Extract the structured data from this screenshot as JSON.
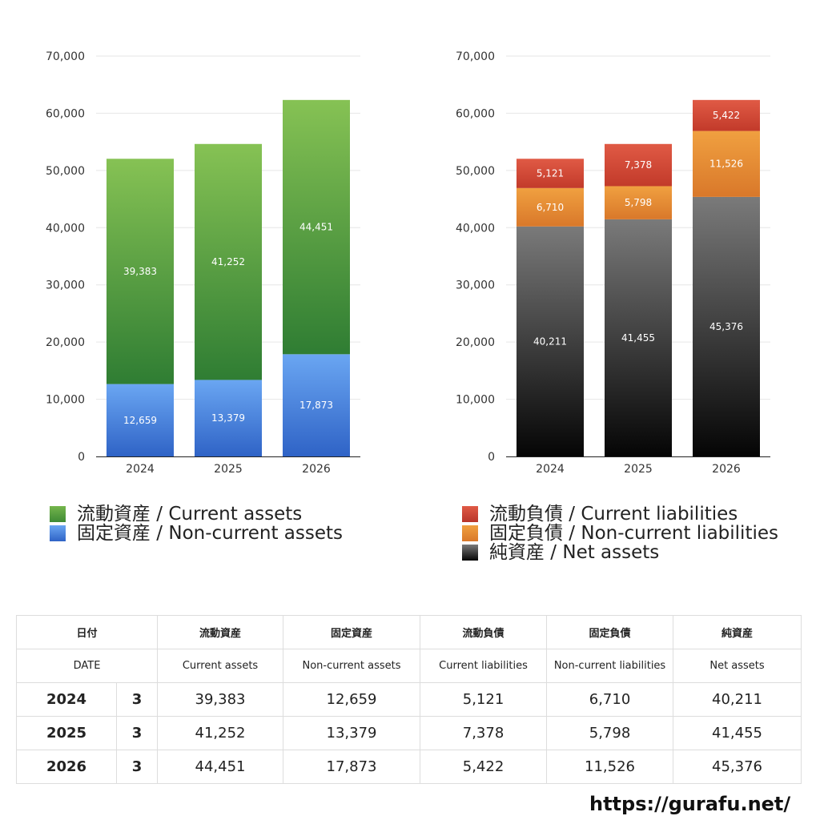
{
  "chart_data": [
    {
      "type": "bar",
      "stacked": true,
      "categories": [
        "2024",
        "2025",
        "2026"
      ],
      "ylim": [
        0,
        70000
      ],
      "yticks": [
        "0",
        "10,000",
        "20,000",
        "30,000",
        "40,000",
        "50,000",
        "60,000",
        "70,000"
      ],
      "grid": true,
      "legend_position": "bottom-left",
      "series": [
        {
          "name": "固定資産 / Non-current assets",
          "values": [
            12659,
            13379,
            17873
          ],
          "labels": [
            "12,659",
            "13,379",
            "17,873"
          ],
          "color_top": "#6aa6f2",
          "color_bottom": "#2f63c6"
        },
        {
          "name": "流動資産 / Current assets",
          "values": [
            39383,
            41252,
            44451
          ],
          "labels": [
            "39,383",
            "41,252",
            "44,451"
          ],
          "color_top": "#86c254",
          "color_bottom": "#2f7d33"
        }
      ],
      "legend": [
        {
          "label": "流動資産 / Current assets",
          "color": "#5aa544"
        },
        {
          "label": "固定資産 / Non-current assets",
          "color": "#4a86dd"
        }
      ]
    },
    {
      "type": "bar",
      "stacked": true,
      "categories": [
        "2024",
        "2025",
        "2026"
      ],
      "ylim": [
        0,
        70000
      ],
      "yticks": [
        "0",
        "10,000",
        "20,000",
        "30,000",
        "40,000",
        "50,000",
        "60,000",
        "70,000"
      ],
      "grid": true,
      "legend_position": "bottom-left",
      "series": [
        {
          "name": "純資産 / Net assets",
          "values": [
            40211,
            41455,
            45376
          ],
          "labels": [
            "40,211",
            "41,455",
            "45,376"
          ],
          "color_top": "#7a7a7a",
          "color_bottom": "#050505"
        },
        {
          "name": "固定負債 / Non-current liabilities",
          "values": [
            6710,
            5798,
            11526
          ],
          "labels": [
            "6,710",
            "5,798",
            "11,526"
          ],
          "color_top": "#f0a040",
          "color_bottom": "#d9782a"
        },
        {
          "name": "流動負債 / Current liabilities",
          "values": [
            5121,
            7378,
            5422
          ],
          "labels": [
            "5,121",
            "7,378",
            "5,422"
          ],
          "color_top": "#e05a45",
          "color_bottom": "#c23a2a"
        }
      ],
      "legend": [
        {
          "label": "流動負債 / Current liabilities",
          "color": "#d9453a"
        },
        {
          "label": "固定負債 / Non-current liabilities",
          "color": "#e8892f"
        },
        {
          "label": "純資産 / Net assets",
          "color": "#333333"
        }
      ]
    }
  ],
  "table": {
    "header_jp": [
      "日付",
      "流動資産",
      "固定資産",
      "流動負債",
      "固定負債",
      "純資産"
    ],
    "header_en": [
      "DATE",
      "Current assets",
      "Non-current assets",
      "Current liabilities",
      "Non-current liabilities",
      "Net assets"
    ],
    "rows": [
      {
        "year": "2024",
        "count": "3",
        "values": [
          "39,383",
          "12,659",
          "5,121",
          "6,710",
          "40,211"
        ]
      },
      {
        "year": "2025",
        "count": "3",
        "values": [
          "41,252",
          "13,379",
          "7,378",
          "5,798",
          "41,455"
        ]
      },
      {
        "year": "2026",
        "count": "3",
        "values": [
          "44,451",
          "17,873",
          "5,422",
          "11,526",
          "45,376"
        ]
      }
    ]
  },
  "footer": {
    "url": "https://gurafu.net/"
  }
}
